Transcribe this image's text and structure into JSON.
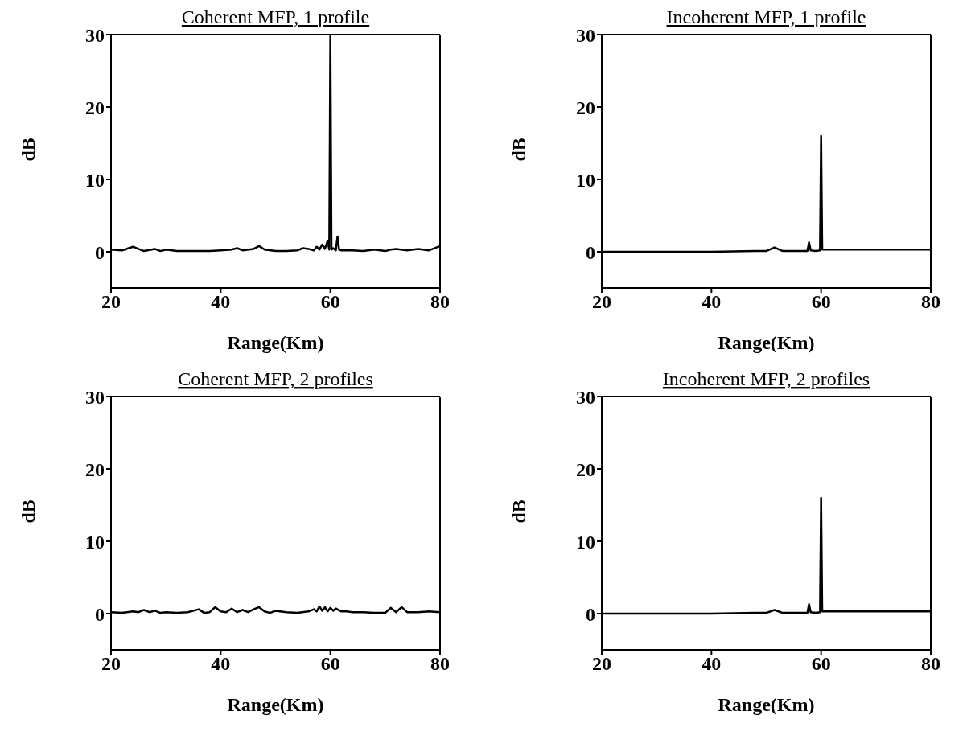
{
  "chart_data": [
    {
      "type": "line",
      "title": "Coherent MFP, 1 profile",
      "xlabel": "Range(Km)",
      "ylabel": "dB",
      "xlim": [
        20,
        80
      ],
      "xticks": [
        20,
        40,
        60,
        80
      ],
      "ylim": [
        -5,
        30
      ],
      "yticks": [
        0,
        10,
        20,
        30
      ],
      "line_style": "solid",
      "series": [
        {
          "color": "#000000",
          "x": [
            20,
            22,
            24,
            26,
            28,
            29,
            30,
            32,
            34,
            36,
            38,
            40,
            42,
            43,
            44,
            46,
            47,
            48,
            50,
            52,
            54,
            55,
            56,
            57,
            57.5,
            58,
            58.5,
            59,
            59.5,
            59.8,
            60,
            60.2,
            60.5,
            61,
            61.3,
            61.6,
            62,
            64,
            66,
            68,
            70,
            71,
            72,
            74,
            76,
            78,
            80
          ],
          "values": [
            0.3,
            0.2,
            0.7,
            0.1,
            0.4,
            0.1,
            0.3,
            0.1,
            0.1,
            0.1,
            0.1,
            0.2,
            0.3,
            0.5,
            0.2,
            0.4,
            0.8,
            0.3,
            0.1,
            0.1,
            0.2,
            0.5,
            0.4,
            0.2,
            0.7,
            0.3,
            1.0,
            0.4,
            1.5,
            0.3,
            30,
            0.3,
            0.5,
            0.2,
            2.1,
            0.3,
            0.2,
            0.2,
            0.1,
            0.3,
            0.1,
            0.3,
            0.4,
            0.2,
            0.4,
            0.2,
            0.8
          ]
        }
      ]
    },
    {
      "type": "line",
      "title": "Incoherent MFP, 1 profile",
      "xlabel": "Range(Km)",
      "ylabel": "dB",
      "xlim": [
        20,
        80
      ],
      "xticks": [
        20,
        40,
        60,
        80
      ],
      "ylim": [
        -5,
        30
      ],
      "yticks": [
        0,
        10,
        20,
        30
      ],
      "line_style": "solid",
      "series": [
        {
          "color": "#000000",
          "x": [
            20,
            30,
            40,
            48,
            50,
            51.5,
            53,
            55,
            57.5,
            57.8,
            58.1,
            59,
            59.8,
            60,
            60.2,
            62,
            70,
            80
          ],
          "values": [
            0,
            0,
            0,
            0.1,
            0.1,
            0.6,
            0.1,
            0.1,
            0.1,
            1.3,
            0.2,
            0.1,
            0.2,
            16,
            0.3,
            0.3,
            0.3,
            0.3
          ]
        }
      ]
    },
    {
      "type": "line",
      "title": "Coherent MFP, 2 profiles",
      "xlabel": "Range(Km)",
      "ylabel": "dB",
      "xlim": [
        20,
        80
      ],
      "xticks": [
        20,
        40,
        60,
        80
      ],
      "ylim": [
        -5,
        30
      ],
      "yticks": [
        0,
        10,
        20,
        30
      ],
      "line_style": "solid",
      "series": [
        {
          "color": "#000000",
          "x": [
            20,
            22,
            24,
            25,
            26,
            27,
            28,
            29,
            30,
            32,
            34,
            36,
            37,
            38,
            39,
            40,
            41,
            42,
            43,
            44,
            45,
            46,
            47,
            48,
            49,
            50,
            52,
            54,
            56,
            57,
            57.5,
            58,
            58.5,
            59,
            59.5,
            60,
            60.5,
            61,
            62,
            63,
            64,
            66,
            68,
            70,
            71,
            72,
            73,
            74,
            76,
            78,
            80
          ],
          "values": [
            0.2,
            0.1,
            0.3,
            0.2,
            0.5,
            0.2,
            0.4,
            0.1,
            0.2,
            0.1,
            0.2,
            0.6,
            0.1,
            0.2,
            0.9,
            0.3,
            0.2,
            0.7,
            0.2,
            0.5,
            0.2,
            0.6,
            0.9,
            0.3,
            0.1,
            0.4,
            0.2,
            0.1,
            0.3,
            0.6,
            0.3,
            1.0,
            0.4,
            0.9,
            0.3,
            0.8,
            0.4,
            0.7,
            0.3,
            0.3,
            0.2,
            0.2,
            0.1,
            0.1,
            0.8,
            0.2,
            0.9,
            0.2,
            0.2,
            0.3,
            0.2
          ]
        }
      ]
    },
    {
      "type": "line",
      "title": "Incoherent MFP, 2 profiles",
      "xlabel": "Range(Km)",
      "ylabel": "dB",
      "xlim": [
        20,
        80
      ],
      "xticks": [
        20,
        40,
        60,
        80
      ],
      "ylim": [
        -5,
        30
      ],
      "yticks": [
        0,
        10,
        20,
        30
      ],
      "line_style": "solid",
      "series": [
        {
          "color": "#000000",
          "x": [
            20,
            30,
            40,
            48,
            50,
            51.5,
            53,
            55,
            57.5,
            57.8,
            58.1,
            59,
            59.8,
            60,
            60.2,
            62,
            70,
            80
          ],
          "values": [
            0,
            0,
            0,
            0.1,
            0.1,
            0.5,
            0.1,
            0.1,
            0.1,
            1.3,
            0.2,
            0.1,
            0.2,
            16,
            0.3,
            0.3,
            0.3,
            0.3
          ]
        }
      ]
    }
  ]
}
